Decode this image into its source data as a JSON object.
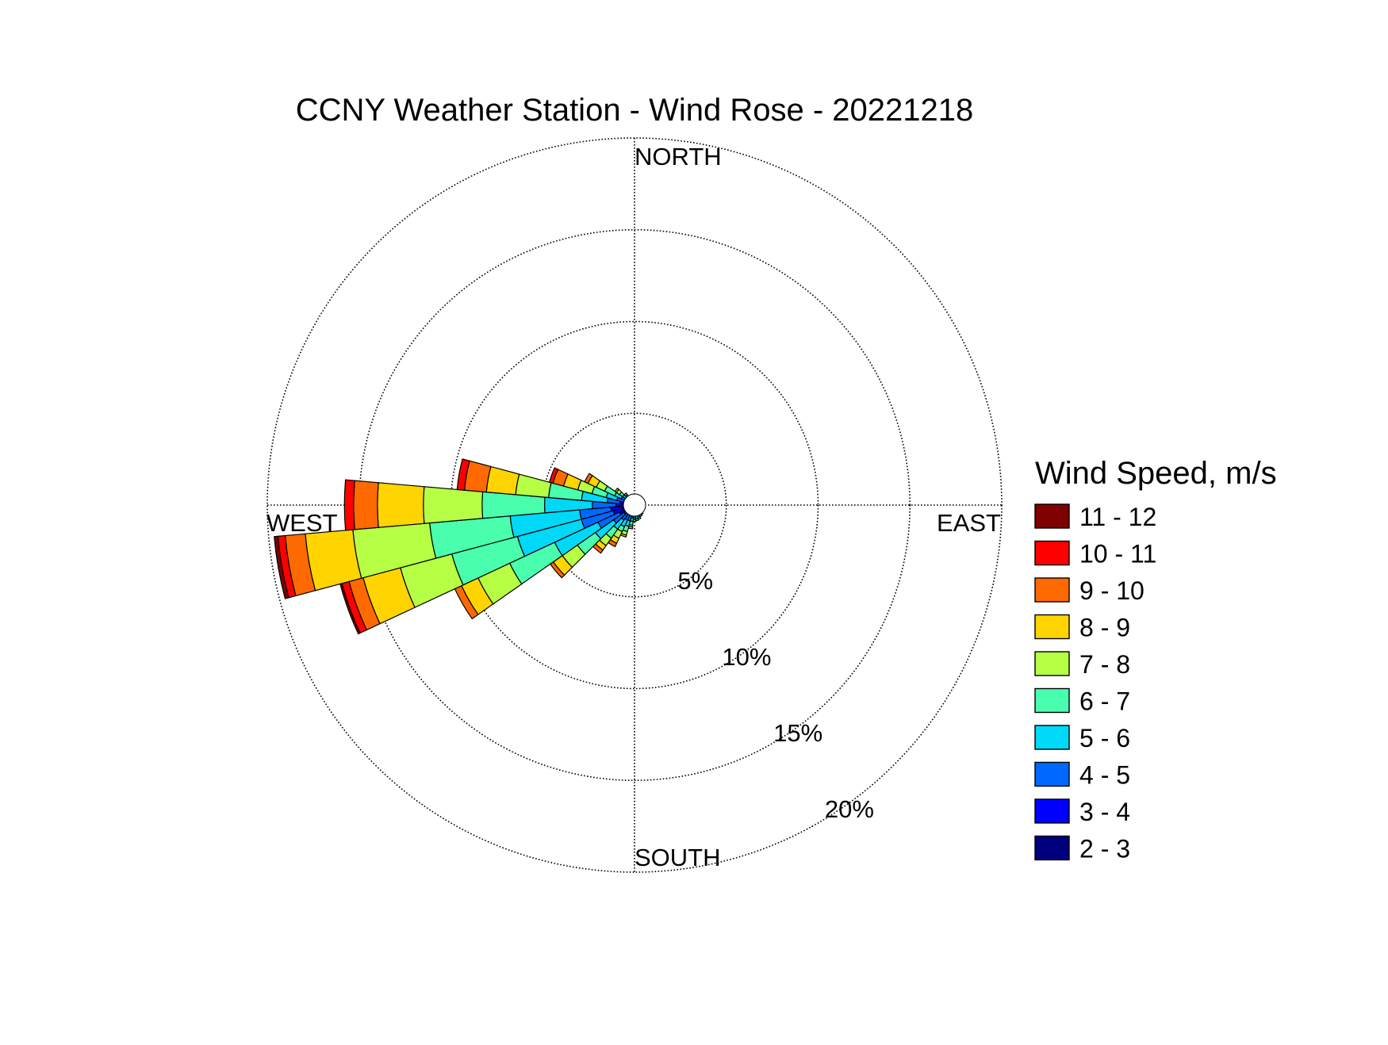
{
  "chart_data": {
    "type": "wind-rose",
    "title": "CCNY Weather Station - Wind Rose - 20221218",
    "direction_labels": {
      "north": "NORTH",
      "south": "SOUTH",
      "east": "EAST",
      "west": "WEST"
    },
    "frequency_ticks": [
      {
        "value": 5,
        "label": "5%"
      },
      {
        "value": 10,
        "label": "10%"
      },
      {
        "value": 15,
        "label": "15%"
      },
      {
        "value": 20,
        "label": "20%"
      }
    ],
    "r_max": 20,
    "legend": {
      "title": "Wind Speed, m/s",
      "bins": [
        {
          "label": "11 - 12",
          "color": "#7f0000"
        },
        {
          "label": "10 - 11",
          "color": "#ff0000"
        },
        {
          "label": "9 - 10",
          "color": "#ff6a00"
        },
        {
          "label": "8 - 9",
          "color": "#ffd400"
        },
        {
          "label": "7 - 8",
          "color": "#b6ff44"
        },
        {
          "label": "6 - 7",
          "color": "#49ffae"
        },
        {
          "label": "5 - 6",
          "color": "#00d8f8"
        },
        {
          "label": "4 - 5",
          "color": "#0068ff"
        },
        {
          "label": "3 - 4",
          "color": "#0000ff"
        },
        {
          "label": "2 - 3",
          "color": "#00007f"
        }
      ]
    },
    "bin_colors_inner_to_outer": [
      "#00007f",
      "#0000ff",
      "#0068ff",
      "#00d8f8",
      "#49ffae",
      "#b6ff44",
      "#ffd400",
      "#ff6a00",
      "#ff0000",
      "#7f0000"
    ],
    "sector_width_deg": 10,
    "sectors": [
      {
        "direction_deg": 180,
        "cumulative_percent": [
          0.3,
          0.4,
          0.6,
          0.7,
          0.8,
          0.9
        ]
      },
      {
        "direction_deg": 190,
        "cumulative_percent": [
          0.3,
          0.5,
          0.7,
          0.9,
          1.1,
          1.2,
          1.3
        ]
      },
      {
        "direction_deg": 200,
        "cumulative_percent": [
          0.3,
          0.6,
          0.9,
          1.2,
          1.5,
          1.7,
          1.8
        ]
      },
      {
        "direction_deg": 210,
        "cumulative_percent": [
          0.3,
          0.6,
          0.9,
          1.3,
          1.6,
          2.0,
          2.3,
          2.5
        ]
      },
      {
        "direction_deg": 220,
        "cumulative_percent": [
          0.3,
          0.6,
          1.0,
          1.6,
          2.2,
          2.7,
          3.0,
          3.2
        ]
      },
      {
        "direction_deg": 230,
        "cumulative_percent": [
          0.3,
          0.7,
          1.4,
          2.6,
          3.8,
          4.8,
          5.4,
          5.6
        ]
      },
      {
        "direction_deg": 240,
        "cumulative_percent": [
          0.4,
          0.9,
          2.2,
          4.8,
          7.5,
          9.4,
          10.4,
          10.8
        ]
      },
      {
        "direction_deg": 250,
        "cumulative_percent": [
          0.5,
          1.2,
          3.0,
          6.6,
          10.3,
          13.2,
          15.3,
          16.1,
          16.5,
          16.6
        ]
      },
      {
        "direction_deg": 260,
        "cumulative_percent": [
          0.5,
          1.3,
          3.0,
          6.8,
          11.2,
          15.4,
          18.0,
          19.1,
          19.5,
          19.7
        ]
      },
      {
        "direction_deg": 270,
        "cumulative_percent": [
          0.5,
          1.0,
          2.3,
          4.9,
          8.3,
          11.5,
          14.0,
          15.3,
          15.8
        ]
      },
      {
        "direction_deg": 280,
        "cumulative_percent": [
          0.4,
          0.8,
          1.5,
          2.9,
          4.7,
          6.5,
          8.1,
          9.3,
          9.7
        ]
      },
      {
        "direction_deg": 290,
        "cumulative_percent": [
          0.3,
          0.6,
          1.0,
          1.6,
          2.4,
          3.2,
          4.0,
          4.6,
          4.8
        ]
      },
      {
        "direction_deg": 300,
        "cumulative_percent": [
          0.3,
          0.5,
          0.8,
          1.2,
          1.8,
          2.3,
          2.8,
          3.0
        ]
      },
      {
        "direction_deg": 310,
        "cumulative_percent": [
          0.3,
          0.4,
          0.6,
          0.8,
          1.0,
          1.2,
          1.3
        ]
      },
      {
        "direction_deg": 320,
        "cumulative_percent": [
          0.3,
          0.4,
          0.5,
          0.6,
          0.7,
          0.8
        ]
      },
      {
        "direction_deg": 330,
        "cumulative_percent": [
          0.3,
          0.35,
          0.4,
          0.45,
          0.5
        ]
      },
      {
        "direction_deg": 140,
        "cumulative_percent": [
          0.3,
          0.4,
          0.55,
          0.65
        ]
      },
      {
        "direction_deg": 150,
        "cumulative_percent": [
          0.3,
          0.4,
          0.55,
          0.7
        ]
      },
      {
        "direction_deg": 160,
        "cumulative_percent": [
          0.3,
          0.4,
          0.55,
          0.7,
          0.8
        ]
      },
      {
        "direction_deg": 170,
        "cumulative_percent": [
          0.3,
          0.4,
          0.6,
          0.75,
          0.85
        ]
      }
    ]
  }
}
